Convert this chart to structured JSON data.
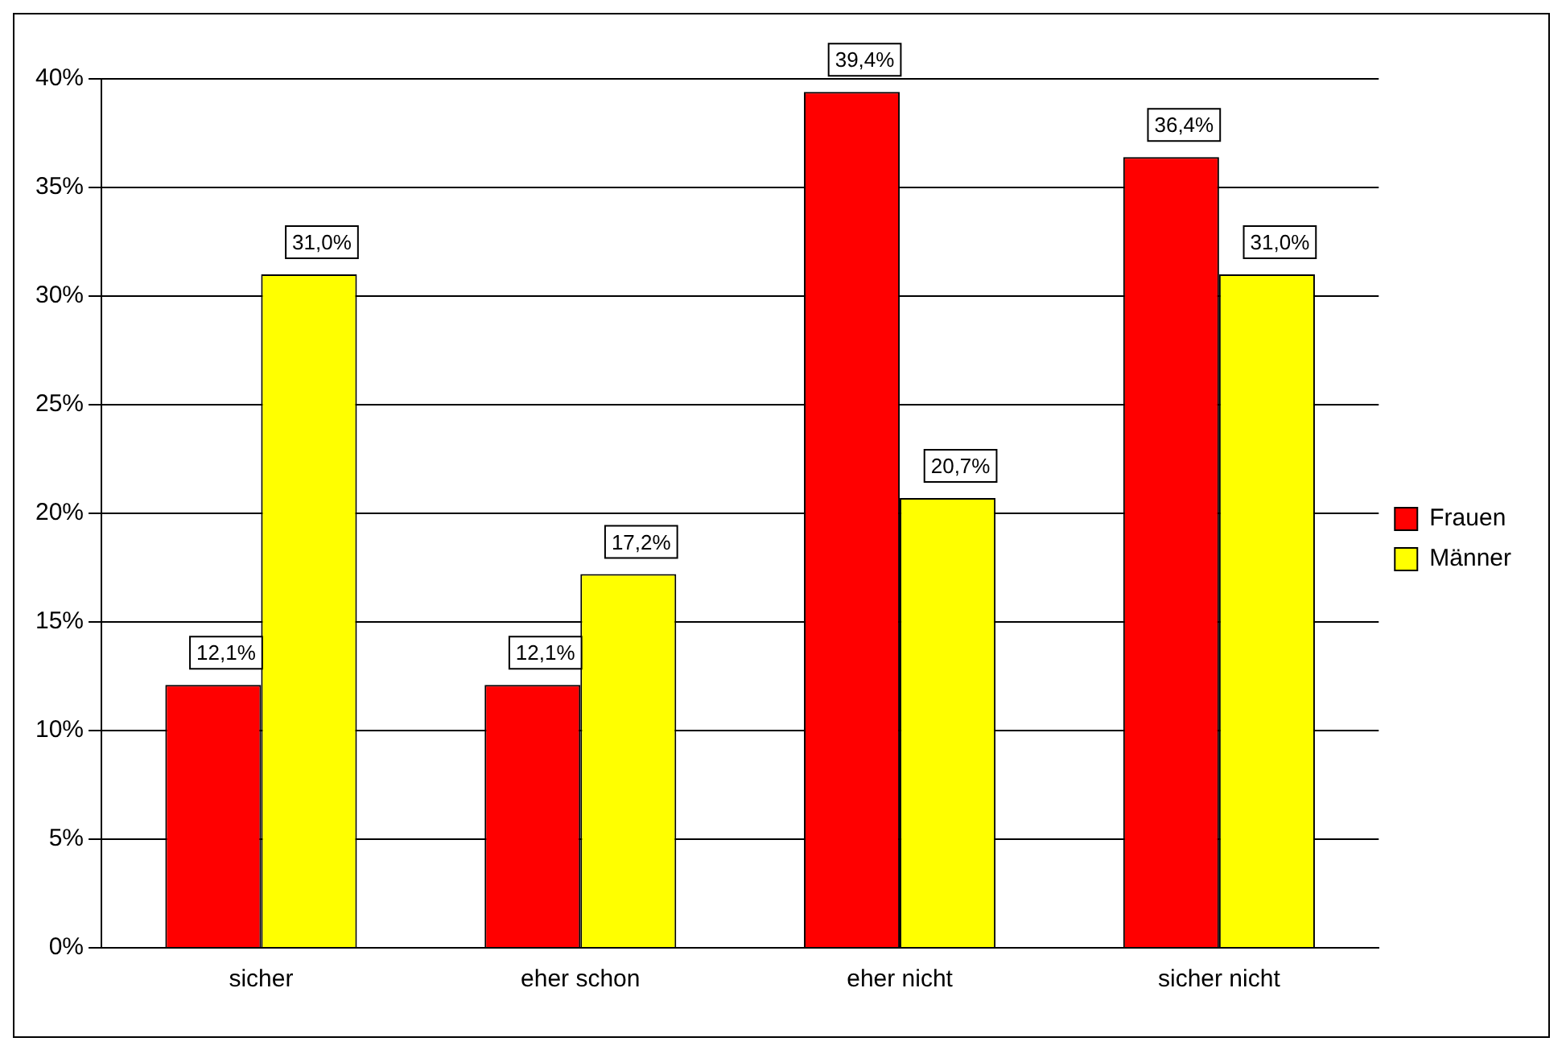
{
  "chart_data": {
    "type": "bar",
    "categories": [
      "sicher",
      "eher schon",
      "eher nicht",
      "sicher nicht"
    ],
    "series": [
      {
        "name": "Frauen",
        "color": "#ff0000",
        "values": [
          12.1,
          12.1,
          39.4,
          36.4
        ],
        "value_labels": [
          "12,1%",
          "12,1%",
          "39,4%",
          "36,4%"
        ]
      },
      {
        "name": "Männer",
        "color": "#ffff00",
        "values": [
          31.0,
          17.2,
          20.7,
          31.0
        ],
        "value_labels": [
          "31,0%",
          "17,2%",
          "20,7%",
          "31,0%"
        ]
      }
    ],
    "ylim": [
      0,
      40
    ],
    "yticks": [
      {
        "value": 0,
        "label": "0%"
      },
      {
        "value": 5,
        "label": "5%"
      },
      {
        "value": 10,
        "label": "10%"
      },
      {
        "value": 15,
        "label": "15%"
      },
      {
        "value": 20,
        "label": "20%"
      },
      {
        "value": 25,
        "label": "25%"
      },
      {
        "value": 30,
        "label": "30%"
      },
      {
        "value": 35,
        "label": "35%"
      },
      {
        "value": 40,
        "label": "40%"
      }
    ],
    "grid": "y",
    "legend": "right"
  }
}
